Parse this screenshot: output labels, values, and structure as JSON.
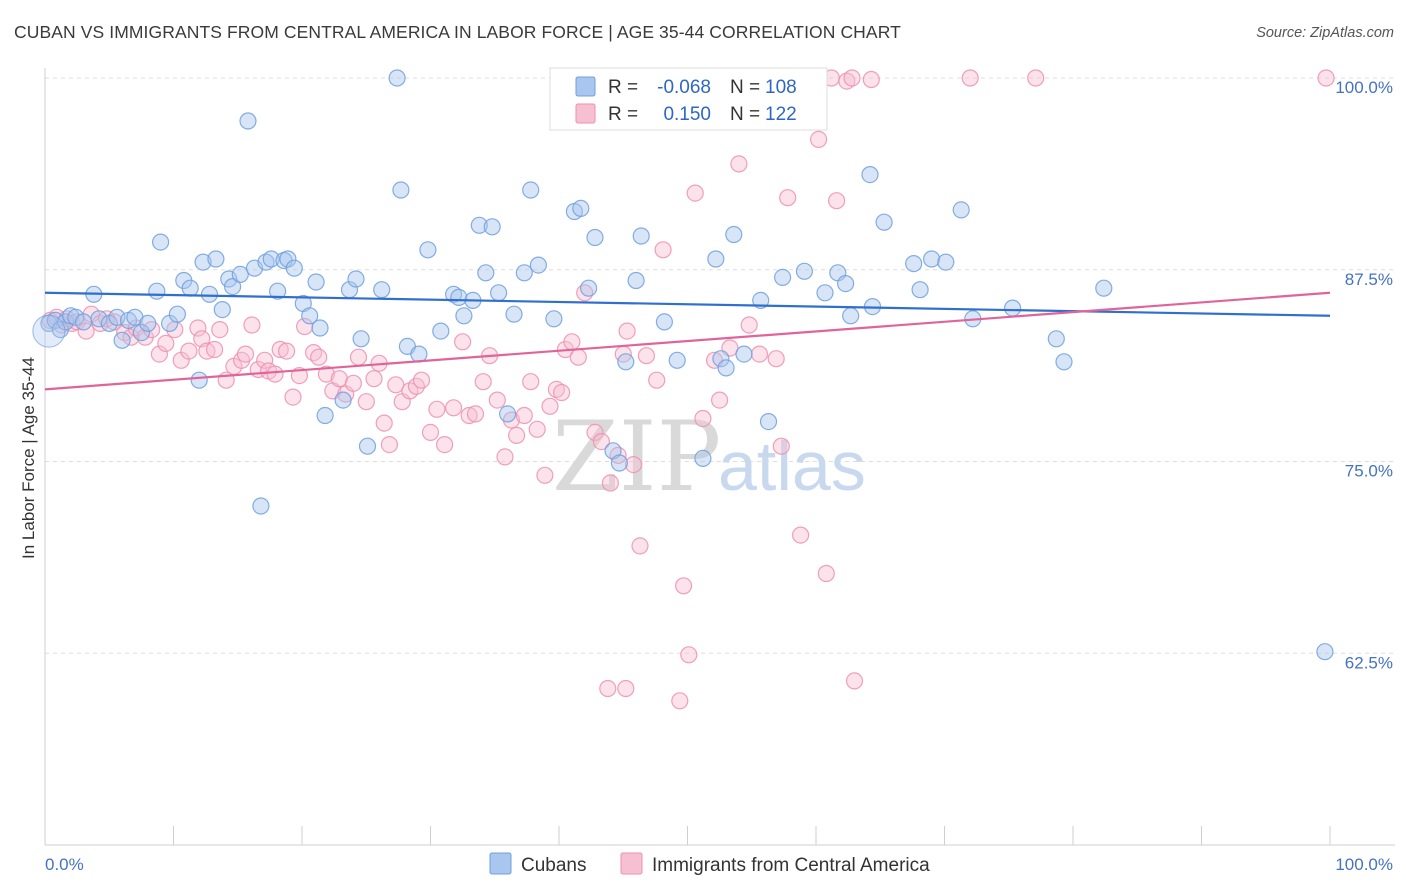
{
  "title": "CUBAN VS IMMIGRANTS FROM CENTRAL AMERICA IN LABOR FORCE | AGE 35-44 CORRELATION CHART",
  "source": "Source: ZipAtlas.com",
  "watermark": {
    "zip": "ZIP",
    "atlas": "atlas"
  },
  "colors": {
    "blue": "#6fa0de",
    "blue_fill": "#a9c6ee",
    "blue_line": "#2f6fce",
    "pink": "#ef8fb0",
    "pink_fill": "#f7bfd2",
    "pink_line": "#e0649a",
    "tick_text": "#4472c4",
    "grid": "#dddddd"
  },
  "legend": {
    "rows": [
      {
        "r_label": "R =",
        "r_value": "-0.068",
        "n_label": "N =",
        "n_value": "108",
        "color": "blue"
      },
      {
        "r_label": "R =",
        "r_value": "0.150",
        "n_label": "N =",
        "n_value": "122",
        "color": "pink"
      }
    ]
  },
  "bottom_legend": [
    {
      "label": "Cubans",
      "color": "blue"
    },
    {
      "label": "Immigrants from Central America",
      "color": "pink"
    }
  ],
  "chart_data": {
    "type": "scatter",
    "xlabel": "",
    "ylabel": "In Labor Force | Age 35-44",
    "xlim": [
      0,
      100
    ],
    "ylim": [
      50,
      100
    ],
    "x_tick_labels": [
      "0.0%",
      "100.0%"
    ],
    "y_ticks": [
      62.5,
      75.0,
      87.5,
      100.0
    ],
    "y_tick_labels": [
      "62.5%",
      "75.0%",
      "87.5%",
      "100.0%"
    ],
    "grid": true,
    "legend_position": "top-center",
    "series": [
      {
        "name": "Cubans",
        "color": "blue",
        "trend": {
          "x": [
            0,
            100
          ],
          "y": [
            86.0,
            84.5
          ]
        },
        "points": [
          [
            0.3,
            84.0
          ],
          [
            0.8,
            84.2
          ],
          [
            1.2,
            83.6
          ],
          [
            1.6,
            84.1
          ],
          [
            2.0,
            84.5
          ],
          [
            2.4,
            84.4
          ],
          [
            3.0,
            84.1
          ],
          [
            3.8,
            85.9
          ],
          [
            4.2,
            84.3
          ],
          [
            5.0,
            84.0
          ],
          [
            5.6,
            84.4
          ],
          [
            6.0,
            82.9
          ],
          [
            6.5,
            84.2
          ],
          [
            7.0,
            84.4
          ],
          [
            7.5,
            83.4
          ],
          [
            8.0,
            84.0
          ],
          [
            8.7,
            86.1
          ],
          [
            9.0,
            89.3
          ],
          [
            9.7,
            84.0
          ],
          [
            10.3,
            84.6
          ],
          [
            10.8,
            86.8
          ],
          [
            11.3,
            86.3
          ],
          [
            12.0,
            80.3
          ],
          [
            12.3,
            88.0
          ],
          [
            12.8,
            85.9
          ],
          [
            13.3,
            88.2
          ],
          [
            13.8,
            84.9
          ],
          [
            14.3,
            86.9
          ],
          [
            14.6,
            86.4
          ],
          [
            15.2,
            87.2
          ],
          [
            15.8,
            97.2
          ],
          [
            16.3,
            87.6
          ],
          [
            16.8,
            72.1
          ],
          [
            17.2,
            88.0
          ],
          [
            17.6,
            88.2
          ],
          [
            18.1,
            86.1
          ],
          [
            18.6,
            88.1
          ],
          [
            18.9,
            88.2
          ],
          [
            19.4,
            87.6
          ],
          [
            20.1,
            85.3
          ],
          [
            20.6,
            84.5
          ],
          [
            21.1,
            86.7
          ],
          [
            21.4,
            83.7
          ],
          [
            21.8,
            78.0
          ],
          [
            23.2,
            79.0
          ],
          [
            23.7,
            86.2
          ],
          [
            24.2,
            86.9
          ],
          [
            24.6,
            83.0
          ],
          [
            25.1,
            76.0
          ],
          [
            26.2,
            86.2
          ],
          [
            27.4,
            100.0
          ],
          [
            27.7,
            92.7
          ],
          [
            28.2,
            82.5
          ],
          [
            29.1,
            82.0
          ],
          [
            29.8,
            88.8
          ],
          [
            30.8,
            83.5
          ],
          [
            31.8,
            85.9
          ],
          [
            32.2,
            85.7
          ],
          [
            32.6,
            84.5
          ],
          [
            33.3,
            85.5
          ],
          [
            33.8,
            90.4
          ],
          [
            34.3,
            87.3
          ],
          [
            34.8,
            90.3
          ],
          [
            35.3,
            86.0
          ],
          [
            36.0,
            78.1
          ],
          [
            36.5,
            84.6
          ],
          [
            37.3,
            87.3
          ],
          [
            37.8,
            92.7
          ],
          [
            38.4,
            87.8
          ],
          [
            39.6,
            84.3
          ],
          [
            41.2,
            91.3
          ],
          [
            41.7,
            91.5
          ],
          [
            42.3,
            86.3
          ],
          [
            42.8,
            89.6
          ],
          [
            44.2,
            75.7
          ],
          [
            44.7,
            74.9
          ],
          [
            45.2,
            81.5
          ],
          [
            46.0,
            86.8
          ],
          [
            46.4,
            89.7
          ],
          [
            48.2,
            84.1
          ],
          [
            49.2,
            81.6
          ],
          [
            51.2,
            75.2
          ],
          [
            52.2,
            88.2
          ],
          [
            52.6,
            81.7
          ],
          [
            53.0,
            81.1
          ],
          [
            53.6,
            89.8
          ],
          [
            54.4,
            82.0
          ],
          [
            55.7,
            85.5
          ],
          [
            56.3,
            77.6
          ],
          [
            57.4,
            87.0
          ],
          [
            59.1,
            87.4
          ],
          [
            60.7,
            86.0
          ],
          [
            61.7,
            87.3
          ],
          [
            62.3,
            86.6
          ],
          [
            62.7,
            84.5
          ],
          [
            64.2,
            93.7
          ],
          [
            64.4,
            85.1
          ],
          [
            65.3,
            90.6
          ],
          [
            67.6,
            87.9
          ],
          [
            68.1,
            86.2
          ],
          [
            69.0,
            88.2
          ],
          [
            70.1,
            88.0
          ],
          [
            71.3,
            91.4
          ],
          [
            72.2,
            84.3
          ],
          [
            75.3,
            85.0
          ],
          [
            78.7,
            83.0
          ],
          [
            79.3,
            81.5
          ],
          [
            82.4,
            86.3
          ],
          [
            99.6,
            62.6
          ]
        ]
      },
      {
        "name": "Immigrants from Central America",
        "color": "pink",
        "trend": {
          "x": [
            0,
            100
          ],
          "y": [
            79.7,
            86.0
          ]
        },
        "points": [
          [
            0.4,
            84.2
          ],
          [
            0.9,
            84.4
          ],
          [
            1.3,
            83.9
          ],
          [
            1.7,
            84.3
          ],
          [
            2.1,
            84.0
          ],
          [
            2.5,
            84.1
          ],
          [
            3.2,
            83.5
          ],
          [
            3.6,
            84.6
          ],
          [
            4.3,
            84.0
          ],
          [
            4.8,
            84.3
          ],
          [
            5.4,
            84.1
          ],
          [
            6.2,
            83.4
          ],
          [
            6.7,
            83.1
          ],
          [
            7.1,
            83.7
          ],
          [
            7.8,
            83.1
          ],
          [
            8.3,
            83.6
          ],
          [
            8.9,
            82.0
          ],
          [
            9.4,
            82.7
          ],
          [
            10.1,
            83.6
          ],
          [
            10.6,
            81.6
          ],
          [
            11.2,
            82.2
          ],
          [
            11.9,
            83.7
          ],
          [
            12.2,
            83.0
          ],
          [
            12.6,
            82.2
          ],
          [
            13.2,
            82.3
          ],
          [
            13.6,
            83.6
          ],
          [
            14.1,
            80.3
          ],
          [
            14.7,
            81.2
          ],
          [
            15.3,
            81.6
          ],
          [
            15.6,
            82.0
          ],
          [
            16.1,
            83.9
          ],
          [
            16.6,
            81.0
          ],
          [
            17.1,
            81.6
          ],
          [
            17.4,
            80.9
          ],
          [
            17.9,
            80.7
          ],
          [
            18.3,
            82.3
          ],
          [
            18.8,
            82.2
          ],
          [
            19.3,
            79.2
          ],
          [
            19.8,
            80.6
          ],
          [
            20.2,
            83.8
          ],
          [
            20.9,
            82.1
          ],
          [
            21.3,
            81.8
          ],
          [
            21.9,
            80.7
          ],
          [
            22.4,
            79.6
          ],
          [
            22.9,
            80.4
          ],
          [
            23.4,
            79.4
          ],
          [
            24.0,
            80.1
          ],
          [
            24.4,
            81.8
          ],
          [
            25.0,
            78.9
          ],
          [
            25.6,
            80.4
          ],
          [
            26.0,
            81.4
          ],
          [
            26.4,
            77.5
          ],
          [
            26.8,
            76.1
          ],
          [
            27.3,
            80.0
          ],
          [
            27.8,
            78.9
          ],
          [
            28.4,
            79.6
          ],
          [
            28.9,
            79.9
          ],
          [
            29.3,
            80.3
          ],
          [
            30.0,
            76.9
          ],
          [
            30.5,
            78.4
          ],
          [
            31.1,
            76.1
          ],
          [
            31.8,
            78.5
          ],
          [
            32.5,
            82.8
          ],
          [
            33.0,
            78.0
          ],
          [
            33.5,
            78.1
          ],
          [
            34.1,
            80.2
          ],
          [
            34.6,
            81.9
          ],
          [
            35.2,
            79.0
          ],
          [
            35.8,
            75.3
          ],
          [
            36.3,
            77.7
          ],
          [
            36.7,
            76.7
          ],
          [
            37.3,
            78.0
          ],
          [
            37.8,
            80.2
          ],
          [
            38.3,
            77.1
          ],
          [
            38.9,
            74.1
          ],
          [
            39.3,
            78.6
          ],
          [
            39.8,
            79.7
          ],
          [
            40.5,
            82.3
          ],
          [
            41.0,
            82.8
          ],
          [
            41.5,
            81.8
          ],
          [
            42.0,
            86.0
          ],
          [
            42.8,
            76.9
          ],
          [
            43.3,
            76.3
          ],
          [
            44.0,
            73.6
          ],
          [
            44.6,
            75.4
          ],
          [
            45.3,
            83.5
          ],
          [
            45.8,
            74.8
          ],
          [
            46.3,
            69.5
          ],
          [
            46.8,
            81.9
          ],
          [
            47.6,
            80.3
          ],
          [
            48.1,
            88.8
          ],
          [
            49.7,
            66.9
          ],
          [
            50.1,
            62.4
          ],
          [
            50.6,
            92.5
          ],
          [
            51.2,
            77.8
          ],
          [
            52.1,
            81.6
          ],
          [
            53.3,
            82.4
          ],
          [
            54.0,
            94.4
          ],
          [
            54.8,
            83.9
          ],
          [
            55.6,
            82.0
          ],
          [
            56.9,
            81.7
          ],
          [
            57.3,
            76.0
          ],
          [
            57.8,
            92.2
          ],
          [
            58.8,
            70.2
          ],
          [
            59.1,
            100.0
          ],
          [
            60.2,
            96.0
          ],
          [
            60.8,
            67.7
          ],
          [
            61.2,
            100.0
          ],
          [
            61.6,
            92.0
          ],
          [
            62.4,
            99.8
          ],
          [
            62.8,
            100.0
          ],
          [
            63.0,
            60.7
          ],
          [
            64.3,
            99.9
          ],
          [
            43.8,
            60.2
          ],
          [
            45.2,
            60.2
          ],
          [
            49.4,
            59.4
          ],
          [
            72.0,
            100.0
          ],
          [
            77.1,
            100.0
          ],
          [
            99.7,
            100.0
          ],
          [
            45.0,
            82.0
          ],
          [
            52.5,
            79.0
          ],
          [
            40.2,
            79.5
          ]
        ]
      }
    ]
  }
}
